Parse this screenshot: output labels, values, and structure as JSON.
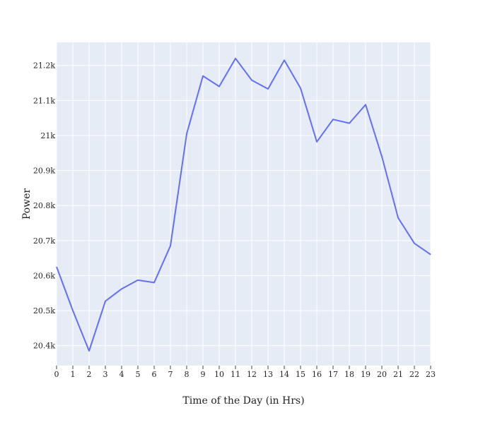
{
  "chart_data": {
    "type": "line",
    "title": "",
    "xlabel": "Time of the Day (in Hrs)",
    "ylabel": "Power",
    "x": [
      0,
      1,
      2,
      3,
      4,
      5,
      6,
      7,
      8,
      9,
      10,
      11,
      12,
      13,
      14,
      15,
      16,
      17,
      18,
      19,
      20,
      21,
      22,
      23
    ],
    "x_tick_labels": [
      "0",
      "1",
      "2",
      "3",
      "4",
      "5",
      "6",
      "7",
      "8",
      "9",
      "10",
      "11",
      "12",
      "13",
      "14",
      "15",
      "16",
      "17",
      "18",
      "19",
      "20",
      "21",
      "22",
      "23"
    ],
    "y_tick_values": [
      20400,
      20500,
      20600,
      20700,
      20800,
      20900,
      21000,
      21100,
      21200
    ],
    "y_tick_labels": [
      "20.4k",
      "20.5k",
      "20.6k",
      "20.7k",
      "20.8k",
      "20.9k",
      "21k",
      "21.1k",
      "21.2k"
    ],
    "xlim": [
      0,
      23
    ],
    "ylim": [
      20343,
      21266
    ],
    "grid": true,
    "series": [
      {
        "values": [
          20625,
          20500,
          20385,
          20527,
          20562,
          20587,
          20580,
          20685,
          21005,
          21170,
          21140,
          21220,
          21158,
          21133,
          21215,
          21135,
          20982,
          21046,
          21035,
          21088,
          20940,
          20765,
          20692,
          20660
        ]
      }
    ],
    "colors": {
      "plot_background": "#E5ECF6",
      "grid": "#FFFFFF",
      "line": "#636EFA",
      "page_background": "#FFFFFF"
    }
  }
}
